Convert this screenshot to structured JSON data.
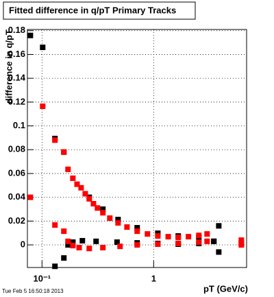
{
  "chart_data": {
    "type": "scatter",
    "title": "Fitted difference in q/pT  Primary Tracks",
    "ylabel": "difference in q/pT",
    "xlabel": "pT (GeV/c)",
    "footer": "Tue Feb  5 16:50:18 2013",
    "xscale": "log",
    "grid": true,
    "xlim": [
      0.074,
      6.8
    ],
    "ylim": [
      -0.019,
      0.181
    ],
    "xticks": [
      {
        "value": 0.1,
        "label": "10⁻¹"
      },
      1
    ],
    "yticks": [
      0,
      0.02,
      0.04,
      0.06,
      0.08,
      0.1,
      0.12,
      0.14,
      0.16,
      0.18
    ],
    "series": [
      {
        "color": "#000000",
        "x": [
          0.0787,
          0.1014,
          0.1306,
          0.157,
          0.265,
          0.351,
          0.48,
          0.712,
          1.09,
          1.66,
          2.54,
          3.46,
          3.83
        ],
        "values": [
          0.176,
          0.166,
          0.0894,
          0.078,
          0.04,
          0.03,
          0.0213,
          0.0144,
          0.0098,
          0.0075,
          0.0063,
          0.003,
          0.016
        ]
      },
      {
        "color": "#000000",
        "x": [
          0.1306,
          0.157,
          0.171,
          0.189,
          0.23,
          0.305,
          0.47,
          0.712,
          1.09,
          1.66,
          2.54,
          3.46,
          3.83,
          6.1
        ],
        "values": [
          -0.018,
          -0.011,
          0,
          0.0023,
          0.0035,
          0.003,
          0.0023,
          0.0017,
          0.0012,
          0.0006,
          0.0012,
          0.003,
          -0.006,
          0.0017
        ]
      },
      {
        "color": "#ff0000",
        "x": [
          0.0787,
          0.1014,
          0.1306,
          0.157,
          0.171,
          0.189,
          0.206,
          0.224,
          0.244,
          0.265,
          0.289,
          0.314,
          0.351,
          0.405,
          0.48,
          0.577,
          0.712,
          0.88,
          1.09,
          1.35,
          1.66,
          2.05,
          2.54,
          3.01,
          6.1
        ],
        "values": [
          0.04,
          0.1165,
          0.088,
          0.078,
          0.0635,
          0.056,
          0.051,
          0.048,
          0.043,
          0.0387,
          0.0346,
          0.031,
          0.027,
          0.0225,
          0.0185,
          0.015,
          0.0115,
          0.0092,
          0.0075,
          0.0069,
          0.0063,
          0.0069,
          0.008,
          0.0092,
          0.004
        ]
      },
      {
        "color": "#ff0000",
        "x": [
          0.1306,
          0.157,
          0.171,
          0.189,
          0.215,
          0.265,
          0.351,
          0.5,
          0.712,
          1.09,
          1.66,
          2.54,
          3.01,
          6.1
        ],
        "values": [
          0.0167,
          0.0115,
          0.003,
          -0.0006,
          -0.0023,
          -0.003,
          -0.0023,
          -0.0012,
          0,
          0.0006,
          0.0012,
          0.0023,
          0.003,
          0
        ]
      }
    ]
  }
}
